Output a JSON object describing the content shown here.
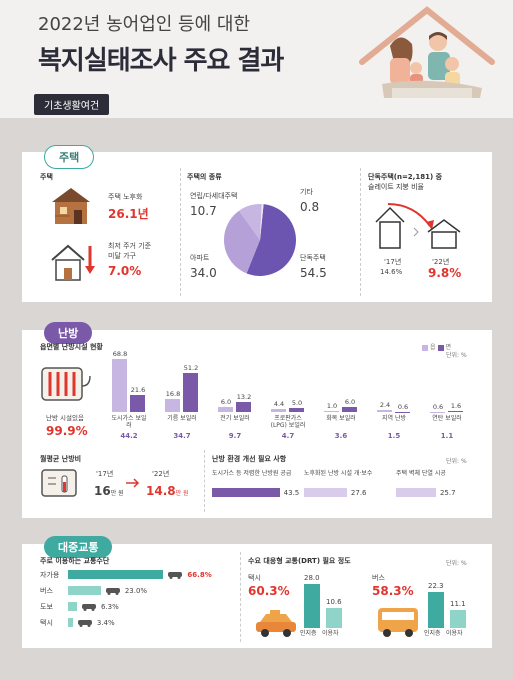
{
  "header": {
    "title_line1": "2022년 농어업인 등에 대한",
    "title_line2": "복지실태조사 주요 결과",
    "subtitle": "기초생활여건"
  },
  "housing": {
    "pill": "주택",
    "left": {
      "section": "주택",
      "old_label": "주택 노후화",
      "old_value": "26.1년",
      "min_label1": "최저 주거 기준",
      "min_label2": "미달 가구",
      "min_value": "7.0%"
    },
    "types": {
      "section": "주택의 종류",
      "items": [
        {
          "label": "연립/다세대주택",
          "value": "10.7"
        },
        {
          "label": "기타",
          "value": "0.8"
        },
        {
          "label": "아파트",
          "value": "34.0"
        },
        {
          "label": "단독주택",
          "value": "54.5"
        }
      ]
    },
    "slate": {
      "section1": "단독주택(n=2,181) 중",
      "section2": "슬레이트 지붕 비율",
      "y1": "'17년",
      "v1": "14.6%",
      "y2": "'22년",
      "v2": "9.8%"
    }
  },
  "heating": {
    "pill": "난방",
    "chart_section": "읍면별 난방시설 현황",
    "legend": {
      "a": "읍",
      "b": "면",
      "unit": "단위: %"
    },
    "rate_label": "난방 시설있음",
    "rate_value": "99.9%",
    "chart_data": {
      "type": "bar",
      "categories": [
        "도시가스 보일러",
        "기름 보일러",
        "전기 보일러",
        "프로판가스 (LPG) 보일러",
        "화목 보일러",
        "지역 난방",
        "연탄 보일러"
      ],
      "series": [
        {
          "name": "읍",
          "values": [
            68.8,
            16.8,
            6.0,
            4.4,
            1.0,
            2.4,
            0.6
          ]
        },
        {
          "name": "면",
          "values": [
            21.6,
            51.2,
            13.2,
            5.0,
            6.0,
            0.6,
            1.6
          ]
        }
      ],
      "totals": [
        "44.2",
        "34.7",
        "9.7",
        "4.7",
        "3.6",
        "1.5",
        "1.1"
      ]
    },
    "monthly": {
      "section": "월평균 난방비",
      "y1": "'17년",
      "v1": "16",
      "u1": "만 원",
      "y2": "'22년",
      "v2": "14.8",
      "u2": "만 원"
    },
    "needs": {
      "section": "난방 환경 개선 필요 사항",
      "unit": "단위: %",
      "items": [
        {
          "label": "도시가스 등 저렴한 난방원 공급",
          "value": "43.5",
          "pct": 43.5
        },
        {
          "label": "노후화된 난방 시설 개·보수",
          "value": "27.6",
          "pct": 27.6
        },
        {
          "label": "주택 벽체 단열 시공",
          "value": "25.7",
          "pct": 25.7
        }
      ]
    }
  },
  "transport": {
    "pill": "대중교통",
    "modes": {
      "section": "주로 이용하는 교통수단",
      "items": [
        {
          "label": "자가용",
          "value": "66.8%",
          "pct": 66.8
        },
        {
          "label": "버스",
          "value": "23.0%",
          "pct": 23.0
        },
        {
          "label": "도보",
          "value": "6.3%",
          "pct": 6.3
        },
        {
          "label": "택시",
          "value": "3.4%",
          "pct": 3.4
        }
      ]
    },
    "drt": {
      "section": "수요 대응형 교통(DRT) 필요 정도",
      "unit": "단위: %",
      "taxi": {
        "label": "택시",
        "value": "60.3%",
        "a": "28.0",
        "b": "10.6"
      },
      "bus": {
        "label": "버스",
        "value": "58.3%",
        "a": "22.3",
        "b": "11.1"
      },
      "xlabels": [
        "인지층",
        "이용자"
      ]
    }
  },
  "colors": {
    "dark": "#2d2d3a",
    "red": "#e0362e",
    "purple": "#7a5aa8",
    "lavender": "#c8b6e2",
    "teal": "#3eaaa0",
    "lightteal": "#8fd3c9"
  }
}
